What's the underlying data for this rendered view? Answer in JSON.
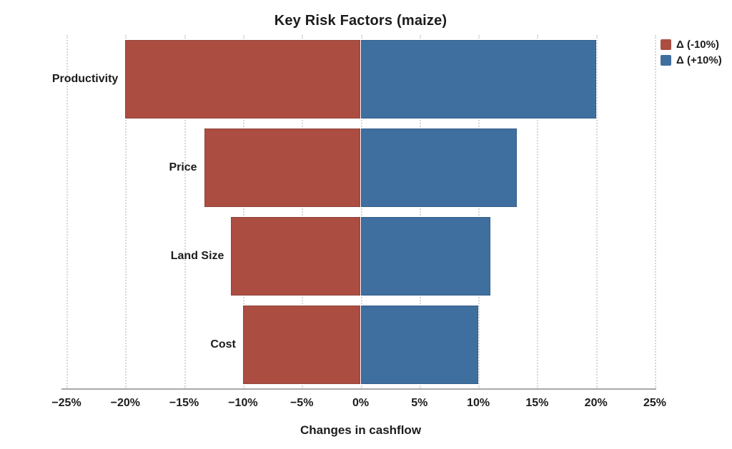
{
  "chart_data": {
    "type": "bar",
    "variant": "tornado-diverging-horizontal",
    "title": "Key Risk Factors (maize)",
    "xlabel": "Changes in cashflow",
    "ylabel": "",
    "categories": [
      "Productivity",
      "Price",
      "Land Size",
      "Cost"
    ],
    "series": [
      {
        "name": "Δ (-10%)",
        "values": [
          -20,
          -13.3,
          -11,
          -10
        ],
        "color": "#AC4D42"
      },
      {
        "name": "Δ (+10%)",
        "values": [
          20,
          13.3,
          11,
          10
        ],
        "color": "#3E6F9F"
      }
    ],
    "xlim": [
      -25,
      25
    ],
    "xtick_step": 5,
    "xtick_labels": [
      "−25%",
      "−20%",
      "−15%",
      "−10%",
      "−5%",
      "0%",
      "5%",
      "10%",
      "15%",
      "20%",
      "25%"
    ],
    "xtick_values": [
      -25,
      -20,
      -15,
      -10,
      -5,
      0,
      5,
      10,
      15,
      20,
      25
    ],
    "grid": "vertical-dotted",
    "legend_position": "top-right-outside",
    "unit": "%"
  },
  "colors": {
    "negative_bar": "#AC4D42",
    "positive_bar": "#3E6F9F",
    "negative_bar_edge": "#91453C",
    "positive_bar_edge": "#376089",
    "gridline": "#D7D7D7",
    "axis_line": "#A9A9A9",
    "text": "#1C1C1C",
    "background": "#FFFFFF"
  }
}
